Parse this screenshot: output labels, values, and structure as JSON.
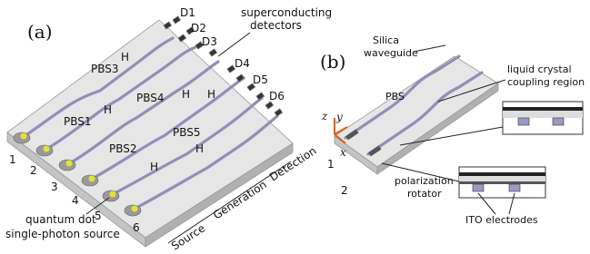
{
  "panel_a": {
    "label": "(a)",
    "detectors": [
      "D1",
      "D2",
      "D3",
      "D4",
      "D5",
      "D6"
    ],
    "detectors_label": [
      "superconducting",
      "detectors"
    ],
    "splitters": [
      "PBS3",
      "PBS4",
      "PBS1",
      "PBS2",
      "PBS5"
    ],
    "rotators": [
      "H",
      "H",
      "H",
      "H",
      "H",
      "H"
    ],
    "ports": [
      "1",
      "2",
      "3",
      "4",
      "5",
      "6"
    ],
    "source_label": [
      "quantum dot",
      "single-photon source"
    ],
    "stages": [
      "Source",
      "Generation",
      "Detection"
    ]
  },
  "panel_b": {
    "label": "(b)",
    "waveguide_label": [
      "Silica",
      "waveguide"
    ],
    "splitter": "PBS",
    "coupling_label": [
      "liquid crystal",
      "coupling region"
    ],
    "axes": [
      "z",
      "y",
      "x"
    ],
    "ports": [
      "1",
      "2"
    ],
    "rotator_label": [
      "polarization",
      "rotator"
    ],
    "electrodes_label": "ITO electrodes"
  }
}
